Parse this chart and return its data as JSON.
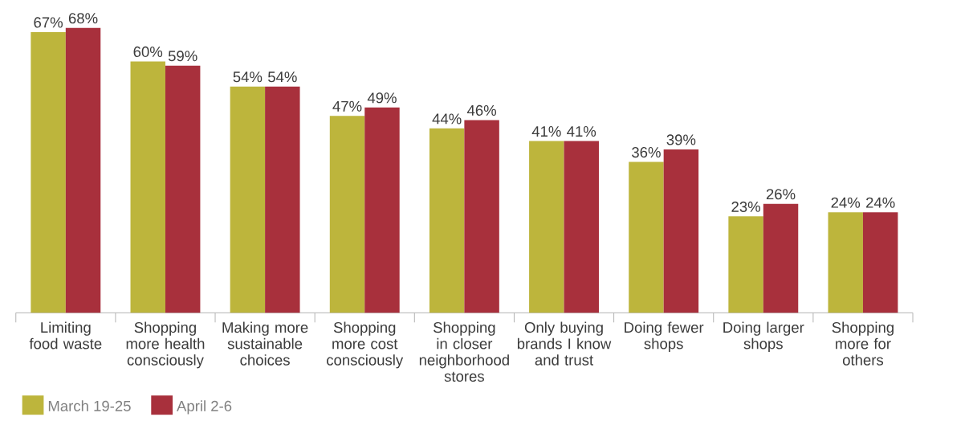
{
  "chart_data": {
    "type": "bar",
    "categories": [
      "Limiting food waste",
      "Shopping more health consciously",
      "Making more sustainable choices",
      "Shopping more cost consciously",
      "Shopping in closer neighborhood stores",
      "Only buying brands I know and trust",
      "Doing fewer shops",
      "Doing larger shops",
      "Shopping more for others"
    ],
    "series": [
      {
        "name": "March 19-25",
        "color": "#bdb53c",
        "values": [
          67,
          60,
          54,
          47,
          44,
          41,
          36,
          23,
          24
        ],
        "value_labels": [
          "67%",
          "60%",
          "54%",
          "47%",
          "44%",
          "41%",
          "36%",
          "23%",
          "24%"
        ]
      },
      {
        "name": "April 2-6",
        "color": "#a8303c",
        "values": [
          68,
          59,
          54,
          49,
          46,
          41,
          39,
          26,
          24
        ],
        "value_labels": [
          "68%",
          "59%",
          "54%",
          "49%",
          "46%",
          "41%",
          "39%",
          "26%",
          "24%"
        ]
      }
    ],
    "legend": "bottom left"
  }
}
